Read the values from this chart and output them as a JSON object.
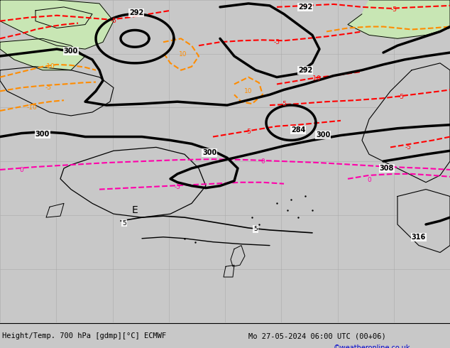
{
  "title_left": "Height/Temp. 700 hPa [gdmp][°C] ECMWF",
  "title_right": "Mo 27-05-2024 06:00 UTC (00+06)",
  "watermark": "©weatheronline.co.uk",
  "ocean_color": "#c8e6b4",
  "land_color": "#c8c8c8",
  "grid_color": "#aaaaaa",
  "figsize": [
    6.34,
    4.9
  ],
  "dpi": 100,
  "bottom_bar_color": "#c8c8c8",
  "title_fontsize": 7.5,
  "watermark_fontsize": 7,
  "watermark_color": "#0000cc",
  "contour_black_lw": 2.5,
  "contour_color_lw": 1.5
}
